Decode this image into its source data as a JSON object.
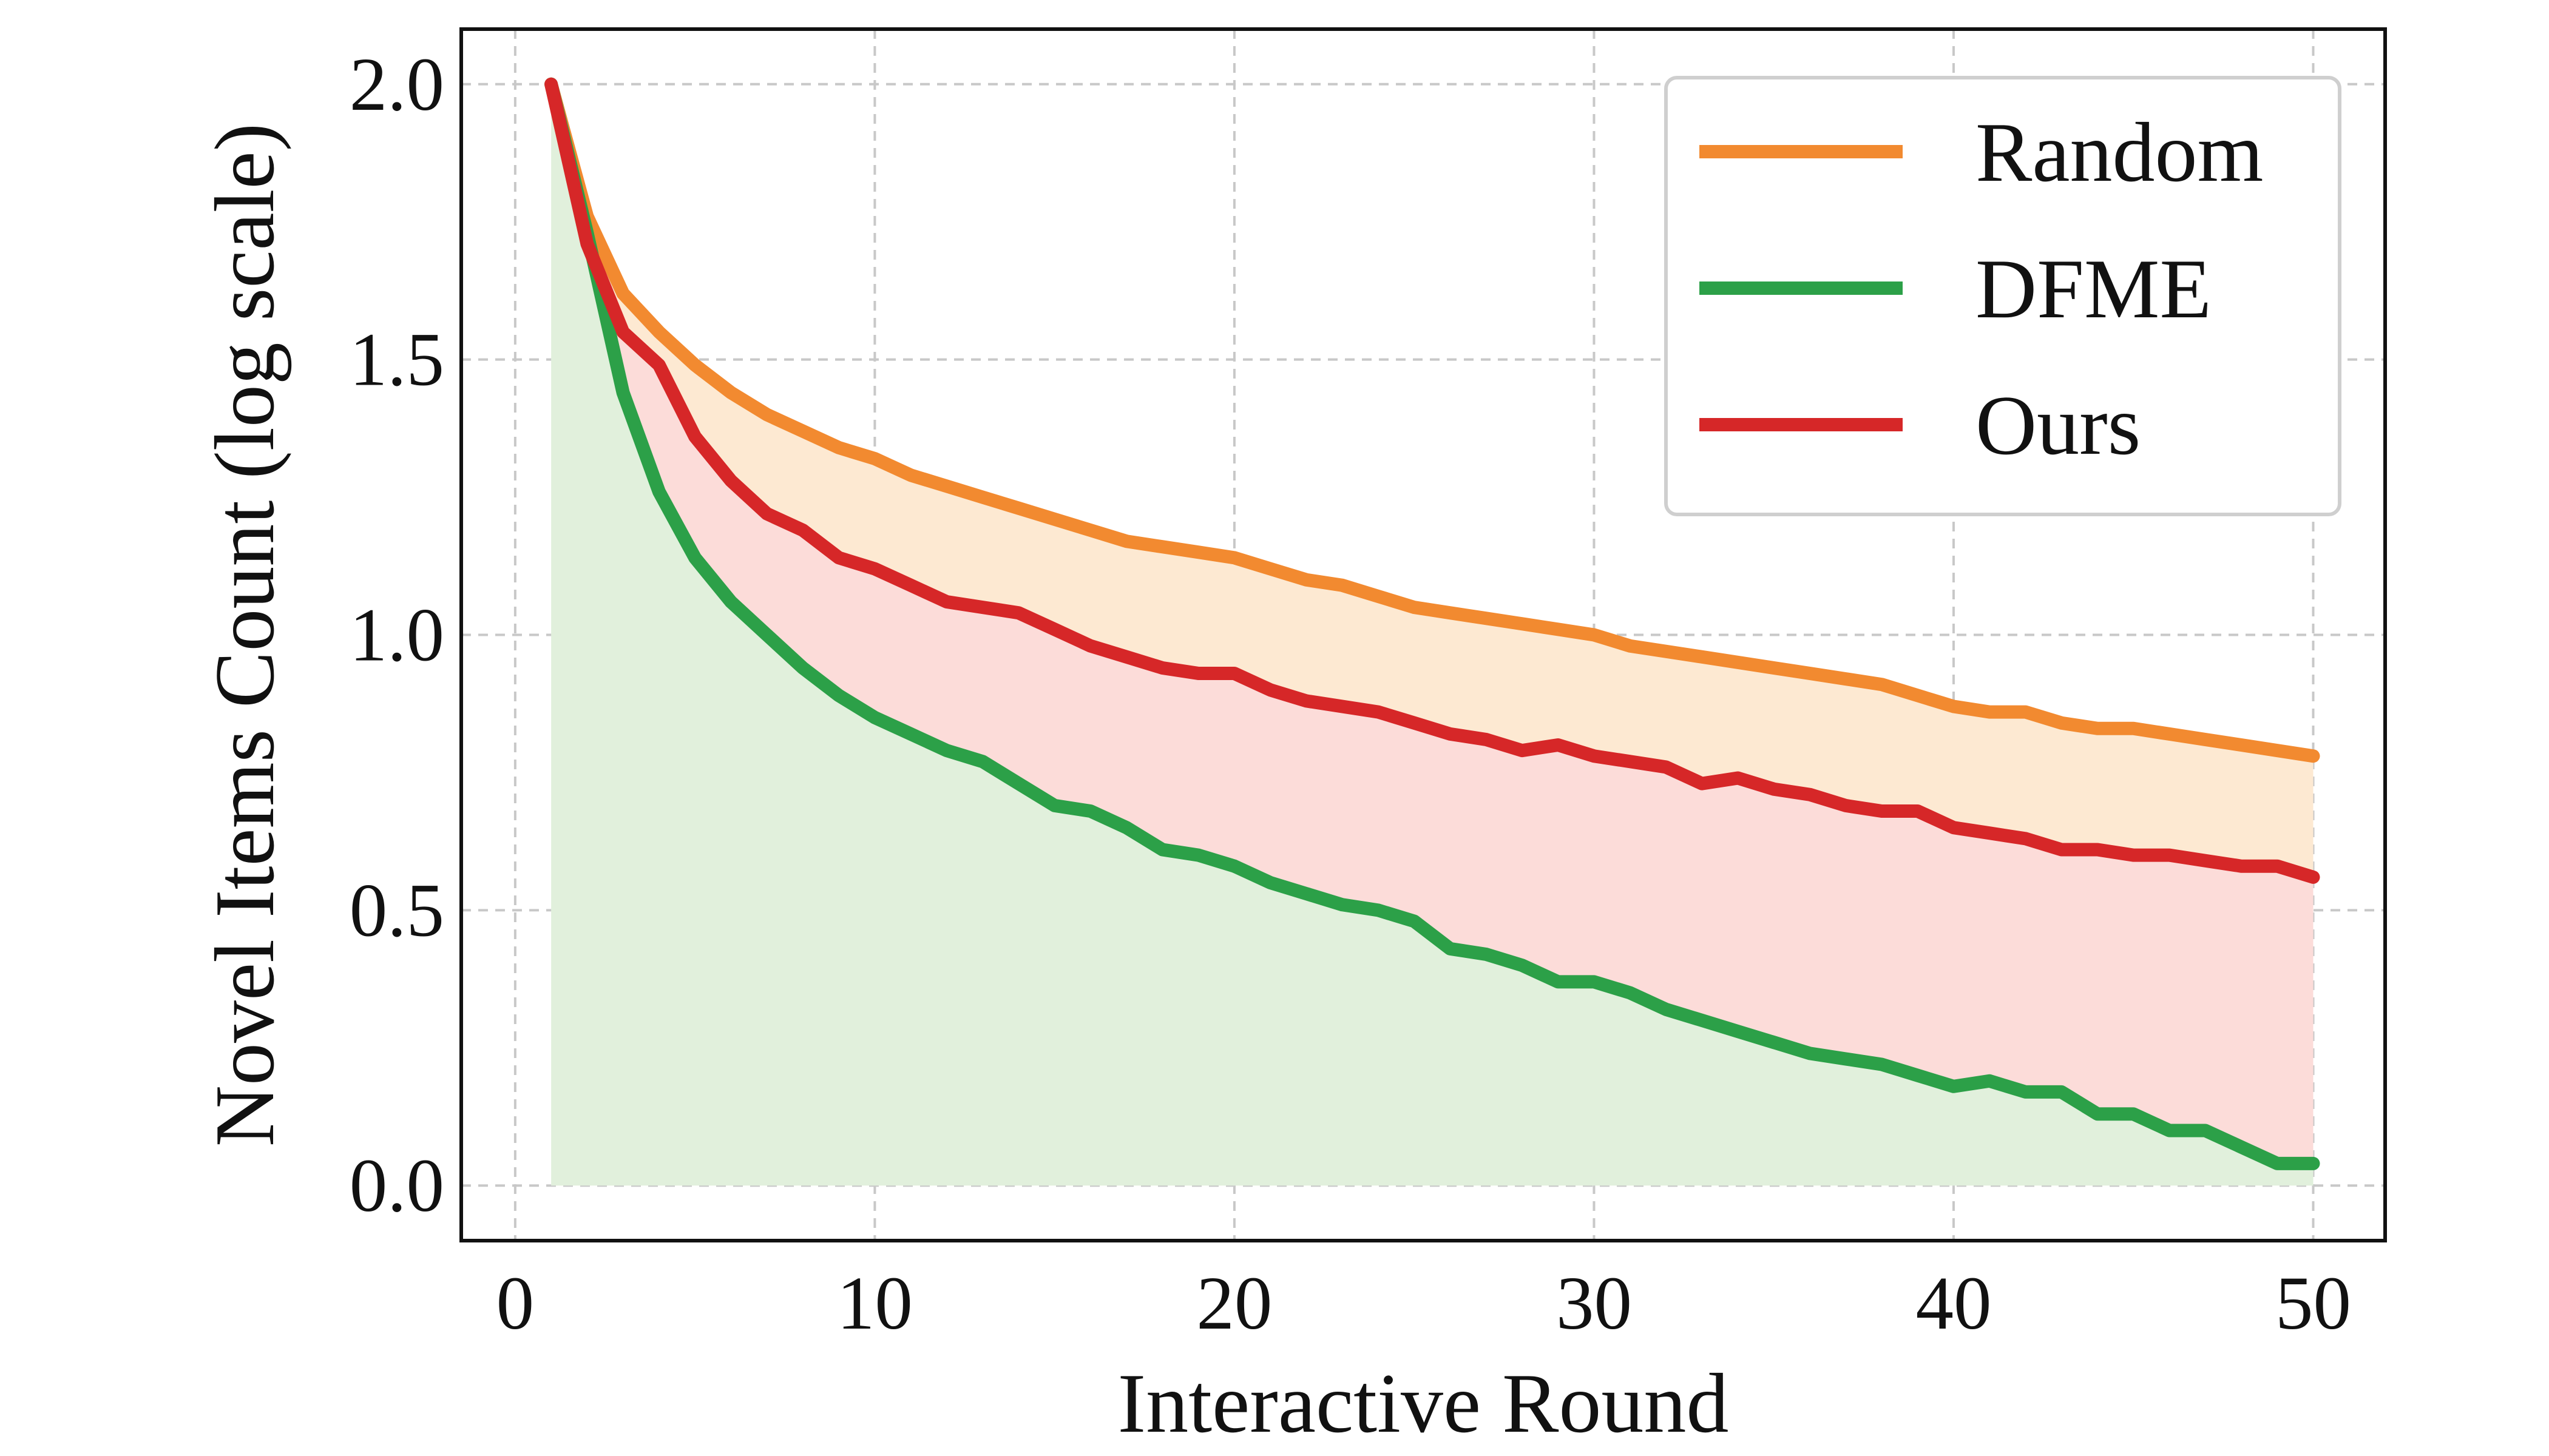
{
  "chart_data": {
    "type": "line",
    "xlabel": "Interactive Round",
    "ylabel": "Novel Items Count (log scale)",
    "xlim": [
      -1.5,
      52
    ],
    "ylim": [
      -0.1,
      2.1
    ],
    "xticks": [
      0,
      10,
      20,
      30,
      40,
      50
    ],
    "yticks": [
      0.0,
      0.5,
      1.0,
      1.5,
      2.0
    ],
    "xtick_labels": [
      "0",
      "10",
      "20",
      "30",
      "40",
      "50"
    ],
    "ytick_labels": [
      "0.0",
      "0.5",
      "1.0",
      "1.5",
      "2.0"
    ],
    "grid": true,
    "legend_position": "top-right",
    "x": [
      1,
      2,
      3,
      4,
      5,
      6,
      7,
      8,
      9,
      10,
      11,
      12,
      13,
      14,
      15,
      16,
      17,
      18,
      19,
      20,
      21,
      22,
      23,
      24,
      25,
      26,
      27,
      28,
      29,
      30,
      31,
      32,
      33,
      34,
      35,
      36,
      37,
      38,
      39,
      40,
      41,
      42,
      43,
      44,
      45,
      46,
      47,
      48,
      49,
      50
    ],
    "series": [
      {
        "name": "Random",
        "color": "#f28a30",
        "fill": "#fde9d2",
        "values": [
          2.0,
          1.76,
          1.62,
          1.55,
          1.49,
          1.44,
          1.4,
          1.37,
          1.34,
          1.32,
          1.29,
          1.27,
          1.25,
          1.23,
          1.21,
          1.19,
          1.17,
          1.16,
          1.15,
          1.14,
          1.12,
          1.1,
          1.09,
          1.07,
          1.05,
          1.04,
          1.03,
          1.02,
          1.01,
          1.0,
          0.98,
          0.97,
          0.96,
          0.95,
          0.94,
          0.93,
          0.92,
          0.91,
          0.89,
          0.87,
          0.86,
          0.86,
          0.84,
          0.83,
          0.83,
          0.82,
          0.81,
          0.8,
          0.79,
          0.78
        ]
      },
      {
        "name": "DFME",
        "color": "#2ca048",
        "fill": "#e1f0dc",
        "values": [
          2.0,
          1.73,
          1.44,
          1.26,
          1.14,
          1.06,
          1.0,
          0.94,
          0.89,
          0.85,
          0.82,
          0.79,
          0.77,
          0.73,
          0.69,
          0.68,
          0.65,
          0.61,
          0.6,
          0.58,
          0.55,
          0.53,
          0.51,
          0.5,
          0.48,
          0.43,
          0.42,
          0.4,
          0.37,
          0.37,
          0.35,
          0.32,
          0.3,
          0.28,
          0.26,
          0.24,
          0.23,
          0.22,
          0.2,
          0.18,
          0.19,
          0.17,
          0.17,
          0.13,
          0.13,
          0.1,
          0.1,
          0.07,
          0.04,
          0.04
        ]
      },
      {
        "name": "Ours",
        "color": "#d62728",
        "fill": "#fcdcd9",
        "values": [
          2.0,
          1.71,
          1.55,
          1.49,
          1.36,
          1.28,
          1.22,
          1.19,
          1.14,
          1.12,
          1.09,
          1.06,
          1.05,
          1.04,
          1.01,
          0.98,
          0.96,
          0.94,
          0.93,
          0.93,
          0.9,
          0.88,
          0.87,
          0.86,
          0.84,
          0.82,
          0.81,
          0.79,
          0.8,
          0.78,
          0.77,
          0.76,
          0.73,
          0.74,
          0.72,
          0.71,
          0.69,
          0.68,
          0.68,
          0.65,
          0.64,
          0.63,
          0.61,
          0.61,
          0.6,
          0.6,
          0.59,
          0.58,
          0.58,
          0.56
        ]
      }
    ]
  }
}
